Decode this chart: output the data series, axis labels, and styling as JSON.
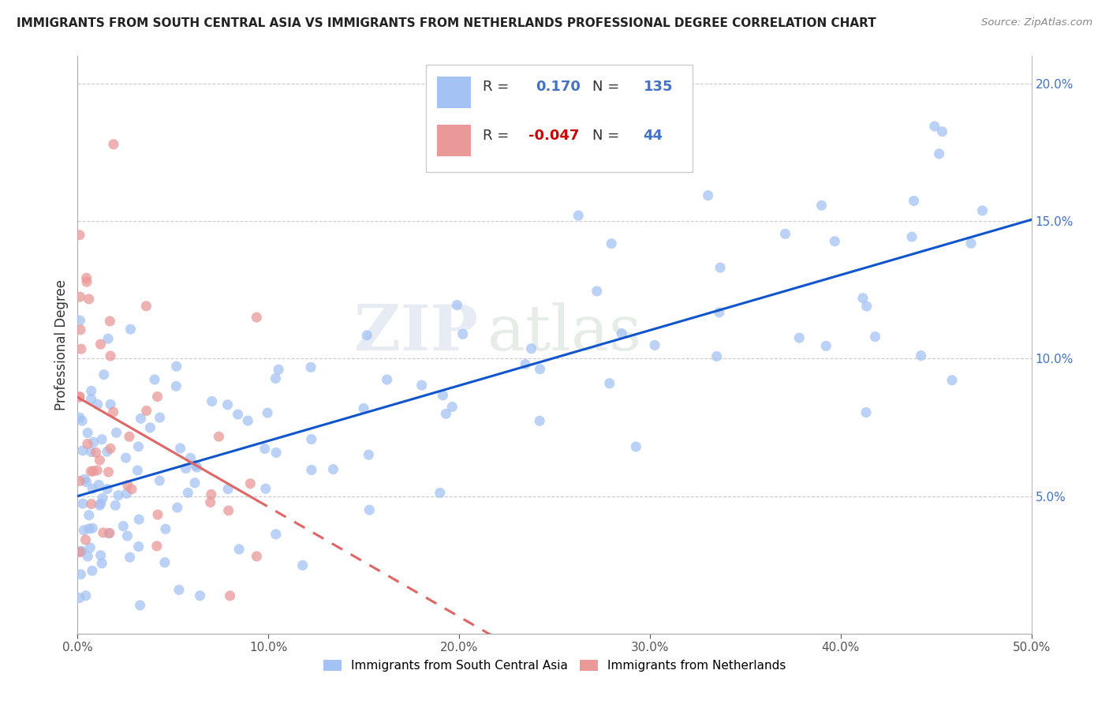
{
  "title": "IMMIGRANTS FROM SOUTH CENTRAL ASIA VS IMMIGRANTS FROM NETHERLANDS PROFESSIONAL DEGREE CORRELATION CHART",
  "source": "Source: ZipAtlas.com",
  "ylabel": "Professional Degree",
  "legend_label_blue": "Immigrants from South Central Asia",
  "legend_label_pink": "Immigrants from Netherlands",
  "r_blue": 0.17,
  "n_blue": 135,
  "r_pink": -0.047,
  "n_pink": 44,
  "xlim": [
    0.0,
    0.5
  ],
  "ylim": [
    0.0,
    0.21
  ],
  "xtick_labels": [
    "0.0%",
    "10.0%",
    "20.0%",
    "30.0%",
    "40.0%",
    "50.0%"
  ],
  "xtick_values": [
    0.0,
    0.1,
    0.2,
    0.3,
    0.4,
    0.5
  ],
  "ytick_labels": [
    "5.0%",
    "10.0%",
    "15.0%",
    "20.0%"
  ],
  "ytick_values": [
    0.05,
    0.1,
    0.15,
    0.2
  ],
  "color_blue": "#a4c2f4",
  "color_pink": "#ea9999",
  "line_color_blue": "#1155cc",
  "line_color_pink": "#e06666",
  "watermark_zip": "ZIP",
  "watermark_atlas": "atlas"
}
